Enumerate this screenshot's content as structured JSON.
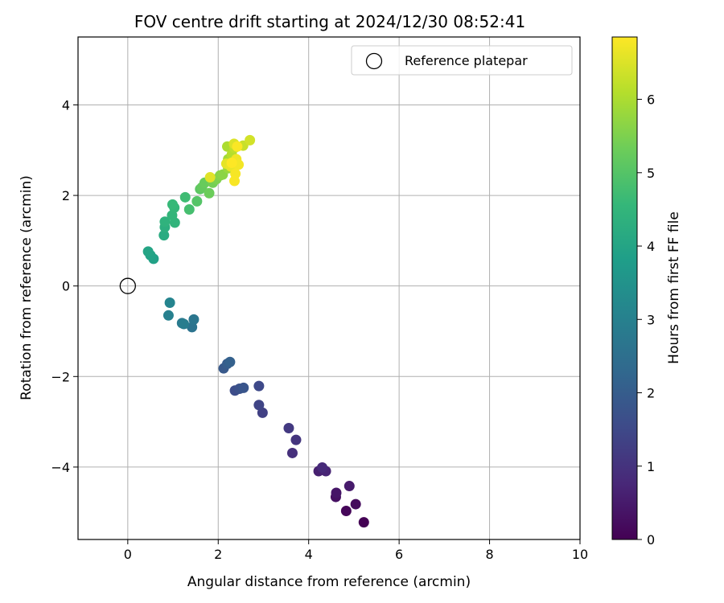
{
  "chart_data": {
    "type": "scatter",
    "title": "FOV centre drift starting at 2024/12/30 08:52:41",
    "xlabel": "Angular distance from reference (arcmin)",
    "ylabel": "Rotation from reference (arcmin)",
    "xlim": [
      -1.1,
      10
    ],
    "ylim": [
      -5.6,
      5.5
    ],
    "xticks": [
      0,
      2,
      4,
      6,
      8,
      10
    ],
    "yticks": [
      -4,
      -2,
      0,
      2,
      4
    ],
    "grid": true,
    "legend": {
      "position": "top-right",
      "entries": [
        "Reference platepar"
      ]
    },
    "reference_point": {
      "x": 0,
      "y": 0
    },
    "colorbar": {
      "label": "Hours from first FF file",
      "colormap": "viridis",
      "range": [
        0,
        6.85
      ],
      "ticks": [
        0,
        1,
        2,
        3,
        4,
        5,
        6
      ]
    },
    "points": [
      {
        "x": 5.22,
        "y": -5.22,
        "t": 0.0
      },
      {
        "x": 4.83,
        "y": -4.97,
        "t": 0.1
      },
      {
        "x": 5.04,
        "y": -4.82,
        "t": 0.2
      },
      {
        "x": 4.6,
        "y": -4.66,
        "t": 0.3
      },
      {
        "x": 4.61,
        "y": -4.57,
        "t": 0.4
      },
      {
        "x": 4.9,
        "y": -4.42,
        "t": 0.5
      },
      {
        "x": 4.22,
        "y": -4.09,
        "t": 0.6
      },
      {
        "x": 4.38,
        "y": -4.09,
        "t": 0.7
      },
      {
        "x": 4.3,
        "y": -4.01,
        "t": 0.8
      },
      {
        "x": 3.64,
        "y": -3.69,
        "t": 0.95
      },
      {
        "x": 3.72,
        "y": -3.4,
        "t": 1.05
      },
      {
        "x": 3.56,
        "y": -3.14,
        "t": 1.15
      },
      {
        "x": 2.98,
        "y": -2.8,
        "t": 1.3
      },
      {
        "x": 2.9,
        "y": -2.63,
        "t": 1.4
      },
      {
        "x": 2.9,
        "y": -2.21,
        "t": 1.5
      },
      {
        "x": 2.37,
        "y": -2.31,
        "t": 1.6
      },
      {
        "x": 2.47,
        "y": -2.27,
        "t": 1.7
      },
      {
        "x": 2.56,
        "y": -2.25,
        "t": 1.8
      },
      {
        "x": 2.12,
        "y": -1.82,
        "t": 1.9
      },
      {
        "x": 2.2,
        "y": -1.72,
        "t": 2.0
      },
      {
        "x": 2.26,
        "y": -1.68,
        "t": 2.1
      },
      {
        "x": 1.42,
        "y": -0.91,
        "t": 2.6
      },
      {
        "x": 1.46,
        "y": -0.74,
        "t": 2.7
      },
      {
        "x": 1.2,
        "y": -0.82,
        "t": 2.8
      },
      {
        "x": 1.24,
        "y": -0.84,
        "t": 2.9
      },
      {
        "x": 0.9,
        "y": -0.65,
        "t": 3.0
      },
      {
        "x": 0.93,
        "y": -0.37,
        "t": 3.1
      },
      {
        "x": 0.57,
        "y": 0.6,
        "t": 3.9
      },
      {
        "x": 0.5,
        "y": 0.68,
        "t": 3.95
      },
      {
        "x": 0.45,
        "y": 0.76,
        "t": 4.0
      },
      {
        "x": 0.8,
        "y": 1.12,
        "t": 4.2
      },
      {
        "x": 0.82,
        "y": 1.3,
        "t": 4.3
      },
      {
        "x": 0.82,
        "y": 1.42,
        "t": 4.4
      },
      {
        "x": 1.04,
        "y": 1.4,
        "t": 4.45
      },
      {
        "x": 0.98,
        "y": 1.56,
        "t": 4.5
      },
      {
        "x": 1.03,
        "y": 1.73,
        "t": 4.55
      },
      {
        "x": 0.99,
        "y": 1.8,
        "t": 4.6
      },
      {
        "x": 1.27,
        "y": 1.96,
        "t": 4.7
      },
      {
        "x": 1.36,
        "y": 1.69,
        "t": 4.8
      },
      {
        "x": 1.53,
        "y": 1.87,
        "t": 5.0
      },
      {
        "x": 1.6,
        "y": 2.14,
        "t": 5.1
      },
      {
        "x": 1.64,
        "y": 2.18,
        "t": 5.2
      },
      {
        "x": 1.7,
        "y": 2.28,
        "t": 5.25
      },
      {
        "x": 1.8,
        "y": 2.05,
        "t": 5.3
      },
      {
        "x": 1.88,
        "y": 2.28,
        "t": 5.4
      },
      {
        "x": 1.96,
        "y": 2.36,
        "t": 5.5
      },
      {
        "x": 2.04,
        "y": 2.44,
        "t": 5.6
      },
      {
        "x": 2.1,
        "y": 2.46,
        "t": 5.65
      },
      {
        "x": 2.22,
        "y": 2.6,
        "t": 5.8
      },
      {
        "x": 2.22,
        "y": 2.8,
        "t": 5.9
      },
      {
        "x": 2.2,
        "y": 3.08,
        "t": 6.0
      },
      {
        "x": 2.3,
        "y": 2.9,
        "t": 6.1
      },
      {
        "x": 2.36,
        "y": 3.05,
        "t": 6.2
      },
      {
        "x": 2.55,
        "y": 3.1,
        "t": 6.3
      },
      {
        "x": 2.7,
        "y": 3.22,
        "t": 6.4
      },
      {
        "x": 2.35,
        "y": 3.14,
        "t": 6.5
      },
      {
        "x": 1.82,
        "y": 2.4,
        "t": 6.55
      },
      {
        "x": 2.18,
        "y": 2.7,
        "t": 6.6
      },
      {
        "x": 2.28,
        "y": 2.64,
        "t": 6.65
      },
      {
        "x": 2.4,
        "y": 2.8,
        "t": 6.7
      },
      {
        "x": 2.45,
        "y": 2.68,
        "t": 6.75
      },
      {
        "x": 2.38,
        "y": 2.48,
        "t": 6.78
      },
      {
        "x": 2.36,
        "y": 2.32,
        "t": 6.8
      },
      {
        "x": 2.42,
        "y": 3.08,
        "t": 6.82
      },
      {
        "x": 2.3,
        "y": 2.72,
        "t": 6.85
      }
    ]
  }
}
